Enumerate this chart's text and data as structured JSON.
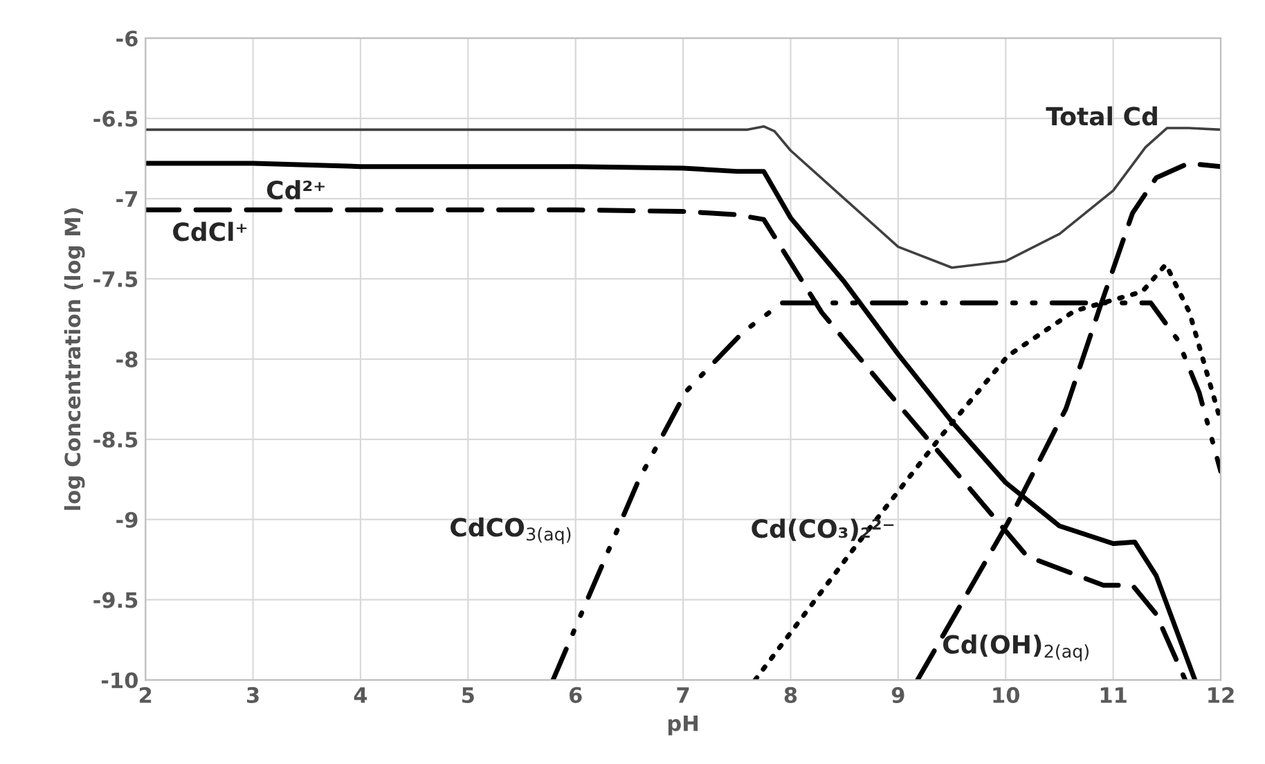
{
  "chart_data": {
    "type": "line",
    "xlabel": "pH",
    "ylabel": "log Concentration (log M)",
    "xlim": [
      2,
      12
    ],
    "xticks": [
      2,
      3,
      4,
      5,
      6,
      7,
      8,
      9,
      10,
      11,
      12
    ],
    "ylim": [
      -10,
      -6
    ],
    "yticks": [
      -10,
      -9.5,
      -9,
      -8.5,
      -8,
      -7.5,
      -7,
      -6.5,
      -6
    ],
    "grid": true,
    "legend": false,
    "marker": "none",
    "series": [
      {
        "name": "Total Cd",
        "color": "#404040",
        "line_style": "solid",
        "x": [
          2,
          7.6,
          7.75,
          7.85,
          8,
          8.5,
          9,
          9.5,
          10,
          10.5,
          11,
          11.3,
          11.5,
          11.7,
          12
        ],
        "values": [
          -6.57,
          -6.57,
          -6.55,
          -6.58,
          -6.7,
          -7.0,
          -7.3,
          -7.43,
          -7.39,
          -7.22,
          -6.95,
          -6.68,
          -6.56,
          -6.56,
          -6.57
        ]
      },
      {
        "name": "Cd²⁺",
        "color": "#000000",
        "line_style": "solid",
        "x": [
          2,
          3,
          4,
          5,
          6,
          7,
          7.5,
          7.75,
          8,
          8.5,
          9,
          9.5,
          10,
          10.5,
          11,
          11.2,
          11.4,
          11.76
        ],
        "values": [
          -6.78,
          -6.78,
          -6.8,
          -6.8,
          -6.8,
          -6.81,
          -6.83,
          -6.83,
          -7.12,
          -7.52,
          -7.97,
          -8.39,
          -8.77,
          -9.04,
          -9.15,
          -9.14,
          -9.35,
          -10.0
        ]
      },
      {
        "name": "CdCl⁺",
        "color": "#000000",
        "line_style": "dashed",
        "x": [
          2,
          3,
          4,
          5,
          6,
          7,
          7.5,
          7.75,
          8.29,
          8.91,
          9.67,
          10.2,
          10.91,
          11.18,
          11.4,
          11.67
        ],
        "values": [
          -7.07,
          -7.07,
          -7.07,
          -7.07,
          -7.07,
          -7.08,
          -7.1,
          -7.13,
          -7.71,
          -8.21,
          -8.81,
          -9.23,
          -9.41,
          -9.41,
          -9.59,
          -10.0
        ]
      },
      {
        "name": "CdCO$_{3(aq)}$",
        "color": "#000000",
        "line_style": "dashdotdot",
        "x": [
          5.79,
          6.09,
          6.59,
          7.03,
          7.56,
          7.92,
          8.5,
          9,
          9.5,
          10,
          10.5,
          11,
          11.35,
          11.6,
          11.8,
          12
        ],
        "values": [
          -10.0,
          -9.53,
          -8.75,
          -8.2,
          -7.83,
          -7.65,
          -7.65,
          -7.65,
          -7.65,
          -7.65,
          -7.65,
          -7.65,
          -7.65,
          -7.88,
          -8.21,
          -8.7
        ]
      },
      {
        "name": "Cd(CO₃)₂²⁻",
        "color": "#000000",
        "line_style": "dotted",
        "x": [
          7.67,
          8.6,
          9.4,
          10.02,
          10.64,
          11.27,
          11.49,
          11.71,
          11.98
        ],
        "values": [
          -10.0,
          -9.17,
          -8.48,
          -7.98,
          -7.7,
          -7.58,
          -7.41,
          -7.71,
          -8.34
        ]
      },
      {
        "name": "Cd(OH)$_{2(aq)}$",
        "color": "#000000",
        "line_style": "dashed",
        "x": [
          9.18,
          10.02,
          10.56,
          10.87,
          11.18,
          11.4,
          11.7,
          12
        ],
        "values": [
          -10.0,
          -9.02,
          -8.31,
          -7.69,
          -7.09,
          -6.87,
          -6.78,
          -6.8
        ]
      }
    ]
  }
}
